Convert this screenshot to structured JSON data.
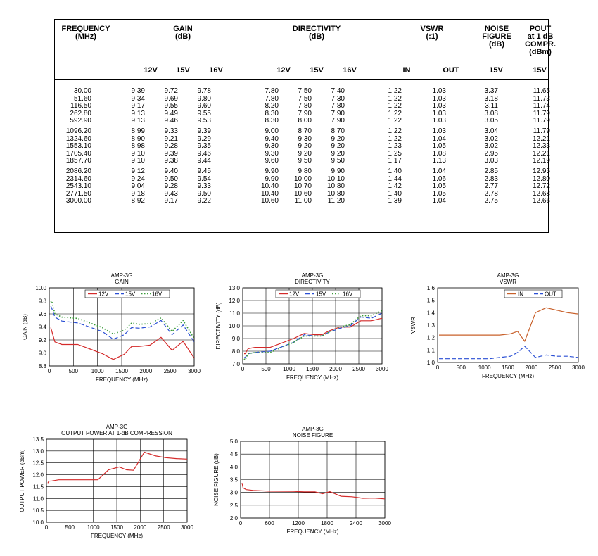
{
  "table": {
    "headers": {
      "frequency": "FREQUENCY\n(MHz)",
      "gain": "GAIN\n(dB)",
      "directivity": "DIRECTIVITY\n(dB)",
      "vswr": "VSWR\n(:1)",
      "noise": "NOISE\nFIGURE\n(dB)",
      "pout": "POUT\nat 1 dB\nCOMPR.\n(dBm)"
    },
    "subheaders": [
      "12V",
      "15V",
      "16V",
      "12V",
      "15V",
      "16V",
      "IN",
      "OUT",
      "15V",
      "15V"
    ],
    "rows": [
      [
        "30.00",
        "9.39",
        "9.72",
        "9.78",
        "7.80",
        "7.50",
        "7.40",
        "1.22",
        "1.03",
        "3.37",
        "11.65"
      ],
      [
        "51.60",
        "9.34",
        "9.69",
        "9.80",
        "7.80",
        "7.50",
        "7.30",
        "1.22",
        "1.03",
        "3.18",
        "11.73"
      ],
      [
        "116.50",
        "9.17",
        "9.55",
        "9.60",
        "8.20",
        "7.80",
        "7.80",
        "1.22",
        "1.03",
        "3.11",
        "11.74"
      ],
      [
        "262.80",
        "9.13",
        "9.49",
        "9.55",
        "8.30",
        "7.90",
        "7.90",
        "1.22",
        "1.03",
        "3.08",
        "11.79"
      ],
      [
        "592.90",
        "9.13",
        "9.46",
        "9.53",
        "8.30",
        "8.00",
        "7.90",
        "1.22",
        "1.03",
        "3.05",
        "11.79"
      ],
      [
        "1096.20",
        "8.99",
        "9.33",
        "9.39",
        "9.00",
        "8.70",
        "8.70",
        "1.22",
        "1.03",
        "3.04",
        "11.79"
      ],
      [
        "1324.60",
        "8.90",
        "9.21",
        "9.29",
        "9.40",
        "9.30",
        "9.20",
        "1.22",
        "1.04",
        "3.02",
        "12.21"
      ],
      [
        "1553.10",
        "8.98",
        "9.28",
        "9.35",
        "9.30",
        "9.20",
        "9.20",
        "1.23",
        "1.05",
        "3.02",
        "12.33"
      ],
      [
        "1705.40",
        "9.10",
        "9.39",
        "9.46",
        "9.30",
        "9.20",
        "9.20",
        "1.25",
        "1.08",
        "2.95",
        "12.21"
      ],
      [
        "1857.70",
        "9.10",
        "9.38",
        "9.44",
        "9.60",
        "9.50",
        "9.50",
        "1.17",
        "1.13",
        "3.03",
        "12.19"
      ],
      [
        "2086.20",
        "9.12",
        "9.40",
        "9.45",
        "9.90",
        "9.80",
        "9.90",
        "1.40",
        "1.04",
        "2.85",
        "12.95"
      ],
      [
        "2314.60",
        "9.24",
        "9.50",
        "9.54",
        "9.90",
        "10.00",
        "10.10",
        "1.44",
        "1.06",
        "2.83",
        "12.80"
      ],
      [
        "2543.10",
        "9.04",
        "9.28",
        "9.33",
        "10.40",
        "10.70",
        "10.80",
        "1.42",
        "1.05",
        "2.77",
        "12.72"
      ],
      [
        "2771.50",
        "9.18",
        "9.43",
        "9.50",
        "10.40",
        "10.60",
        "10.80",
        "1.40",
        "1.05",
        "2.78",
        "12.68"
      ],
      [
        "3000.00",
        "8.92",
        "9.17",
        "9.22",
        "10.60",
        "11.00",
        "11.20",
        "1.39",
        "1.04",
        "2.75",
        "12.66"
      ]
    ]
  },
  "chart_data": [
    {
      "type": "line",
      "title": "AMP-3G",
      "subtitle": "GAIN",
      "xlabel": "FREQUENCY (MHz)",
      "ylabel": "GAIN (dB)",
      "xlim": [
        0,
        3000
      ],
      "ylim": [
        8.8,
        10.0
      ],
      "xticks": [
        0,
        500,
        1000,
        1500,
        2000,
        2500,
        3000
      ],
      "yticks": [
        8.8,
        9.0,
        9.2,
        9.4,
        9.6,
        9.8,
        10.0
      ],
      "ytick_decimals": 1,
      "grid": true,
      "legend": "top-center",
      "series": [
        {
          "name": "12V",
          "color": "#d42a2a",
          "dash": "solid",
          "x": [
            30,
            51.6,
            116.5,
            262.8,
            592.9,
            1096.2,
            1324.6,
            1553.1,
            1705.4,
            1857.7,
            2086.2,
            2314.6,
            2543.1,
            2771.5,
            3000
          ],
          "y": [
            9.39,
            9.34,
            9.17,
            9.13,
            9.13,
            8.99,
            8.9,
            8.98,
            9.1,
            9.1,
            9.12,
            9.24,
            9.04,
            9.18,
            8.92
          ]
        },
        {
          "name": "15V",
          "color": "#2a4fd4",
          "dash": "dash",
          "x": [
            30,
            51.6,
            116.5,
            262.8,
            592.9,
            1096.2,
            1324.6,
            1553.1,
            1705.4,
            1857.7,
            2086.2,
            2314.6,
            2543.1,
            2771.5,
            3000
          ],
          "y": [
            9.72,
            9.69,
            9.55,
            9.49,
            9.46,
            9.33,
            9.21,
            9.28,
            9.39,
            9.38,
            9.4,
            9.5,
            9.28,
            9.43,
            9.17
          ]
        },
        {
          "name": "16V",
          "color": "#3a9a3a",
          "dash": "dot",
          "x": [
            30,
            51.6,
            116.5,
            262.8,
            592.9,
            1096.2,
            1324.6,
            1553.1,
            1705.4,
            1857.7,
            2086.2,
            2314.6,
            2543.1,
            2771.5,
            3000
          ],
          "y": [
            9.78,
            9.8,
            9.6,
            9.55,
            9.53,
            9.39,
            9.29,
            9.35,
            9.46,
            9.44,
            9.45,
            9.54,
            9.33,
            9.5,
            9.22
          ]
        }
      ]
    },
    {
      "type": "line",
      "title": "AMP-3G",
      "subtitle": "DIRECTIVITY",
      "xlabel": "FREQUENCY (MHz)",
      "ylabel": "DIRECTIVITY (dB)",
      "xlim": [
        0,
        3000
      ],
      "ylim": [
        7.0,
        13.0
      ],
      "xticks": [
        0,
        500,
        1000,
        1500,
        2000,
        2500,
        3000
      ],
      "yticks": [
        7.0,
        8.0,
        9.0,
        10.0,
        11.0,
        12.0,
        13.0
      ],
      "ytick_decimals": 1,
      "grid": true,
      "legend": "top-center",
      "series": [
        {
          "name": "12V",
          "color": "#d42a2a",
          "dash": "solid",
          "x": [
            30,
            51.6,
            116.5,
            262.8,
            592.9,
            1096.2,
            1324.6,
            1553.1,
            1705.4,
            1857.7,
            2086.2,
            2314.6,
            2543.1,
            2771.5,
            3000
          ],
          "y": [
            7.8,
            7.8,
            8.2,
            8.3,
            8.3,
            9.0,
            9.4,
            9.3,
            9.3,
            9.6,
            9.9,
            9.9,
            10.4,
            10.4,
            10.6
          ]
        },
        {
          "name": "15V",
          "color": "#2a4fd4",
          "dash": "dash",
          "x": [
            30,
            51.6,
            116.5,
            262.8,
            592.9,
            1096.2,
            1324.6,
            1553.1,
            1705.4,
            1857.7,
            2086.2,
            2314.6,
            2543.1,
            2771.5,
            3000
          ],
          "y": [
            7.5,
            7.5,
            7.8,
            7.9,
            8.0,
            8.7,
            9.3,
            9.2,
            9.2,
            9.5,
            9.8,
            10.0,
            10.7,
            10.6,
            11.0
          ]
        },
        {
          "name": "16V",
          "color": "#3a9a3a",
          "dash": "dot",
          "x": [
            30,
            51.6,
            116.5,
            262.8,
            592.9,
            1096.2,
            1324.6,
            1553.1,
            1705.4,
            1857.7,
            2086.2,
            2314.6,
            2543.1,
            2771.5,
            3000
          ],
          "y": [
            7.4,
            7.3,
            7.8,
            7.9,
            7.9,
            8.7,
            9.2,
            9.2,
            9.2,
            9.5,
            9.9,
            10.1,
            10.8,
            10.8,
            11.2
          ]
        }
      ]
    },
    {
      "type": "line",
      "title": "AMP-3G",
      "subtitle": "VSWR",
      "xlabel": "FREQUENCY (MHz)",
      "ylabel": "VSWR",
      "xlim": [
        0,
        3000
      ],
      "ylim": [
        1.0,
        1.6
      ],
      "xticks": [
        0,
        500,
        1000,
        1500,
        2000,
        2500,
        3000
      ],
      "yticks": [
        1.0,
        1.1,
        1.2,
        1.3,
        1.4,
        1.5,
        1.6
      ],
      "ytick_decimals": 1,
      "grid": false,
      "legend": "top-left",
      "series": [
        {
          "name": "IN",
          "color": "#c8602a",
          "dash": "solid",
          "x": [
            30,
            51.6,
            116.5,
            262.8,
            592.9,
            1096.2,
            1324.6,
            1553.1,
            1705.4,
            1857.7,
            2086.2,
            2314.6,
            2543.1,
            2771.5,
            3000
          ],
          "y": [
            1.22,
            1.22,
            1.22,
            1.22,
            1.22,
            1.22,
            1.22,
            1.23,
            1.25,
            1.17,
            1.4,
            1.44,
            1.42,
            1.4,
            1.39
          ]
        },
        {
          "name": "OUT",
          "color": "#2a4fd4",
          "dash": "dash",
          "x": [
            30,
            51.6,
            116.5,
            262.8,
            592.9,
            1096.2,
            1324.6,
            1553.1,
            1705.4,
            1857.7,
            2086.2,
            2314.6,
            2543.1,
            2771.5,
            3000
          ],
          "y": [
            1.03,
            1.03,
            1.03,
            1.03,
            1.03,
            1.03,
            1.04,
            1.05,
            1.08,
            1.13,
            1.04,
            1.06,
            1.05,
            1.05,
            1.04
          ]
        }
      ]
    },
    {
      "type": "line",
      "title": "AMP-3G",
      "subtitle": "OUTPUT POWER AT 1-dB COMPRESSION",
      "xlabel": "FREQUENCY (MHz)",
      "ylabel": "OUTPUT POWER (dBm)",
      "xlim": [
        0,
        3000
      ],
      "ylim": [
        10.0,
        13.5
      ],
      "xticks": [
        0,
        500,
        1000,
        1500,
        2000,
        2500,
        3000
      ],
      "yticks": [
        10.0,
        10.5,
        11.0,
        11.5,
        12.0,
        12.5,
        13.0,
        13.5
      ],
      "ytick_decimals": 1,
      "grid": true,
      "legend": "none",
      "series": [
        {
          "color": "#d42a2a",
          "dash": "solid",
          "x": [
            30,
            51.6,
            116.5,
            262.8,
            592.9,
            1096.2,
            1324.6,
            1553.1,
            1705.4,
            1857.7,
            2086.2,
            2314.6,
            2543.1,
            2771.5,
            3000
          ],
          "y": [
            11.65,
            11.73,
            11.74,
            11.79,
            11.79,
            11.79,
            12.21,
            12.33,
            12.21,
            12.19,
            12.95,
            12.8,
            12.72,
            12.68,
            12.66
          ]
        }
      ]
    },
    {
      "type": "line",
      "title": "AMP-3G",
      "subtitle": "NOISE FIGURE",
      "xlabel": "FREQUENCY (MHz)",
      "ylabel": "NOISE FIGURE (dB)",
      "xlim": [
        0,
        3000
      ],
      "ylim": [
        2.0,
        5.0
      ],
      "xticks": [
        0,
        600,
        1200,
        1800,
        2400,
        3000
      ],
      "yticks": [
        2.0,
        2.5,
        3.0,
        3.5,
        4.0,
        4.5,
        5.0
      ],
      "ytick_decimals": 1,
      "grid": true,
      "legend": "none",
      "series": [
        {
          "color": "#d42a2a",
          "dash": "solid",
          "x": [
            30,
            51.6,
            116.5,
            262.8,
            592.9,
            1096.2,
            1324.6,
            1553.1,
            1705.4,
            1857.7,
            2086.2,
            2314.6,
            2543.1,
            2771.5,
            3000
          ],
          "y": [
            3.37,
            3.18,
            3.11,
            3.08,
            3.05,
            3.04,
            3.02,
            3.02,
            2.95,
            3.03,
            2.85,
            2.83,
            2.77,
            2.78,
            2.75
          ]
        }
      ]
    }
  ]
}
